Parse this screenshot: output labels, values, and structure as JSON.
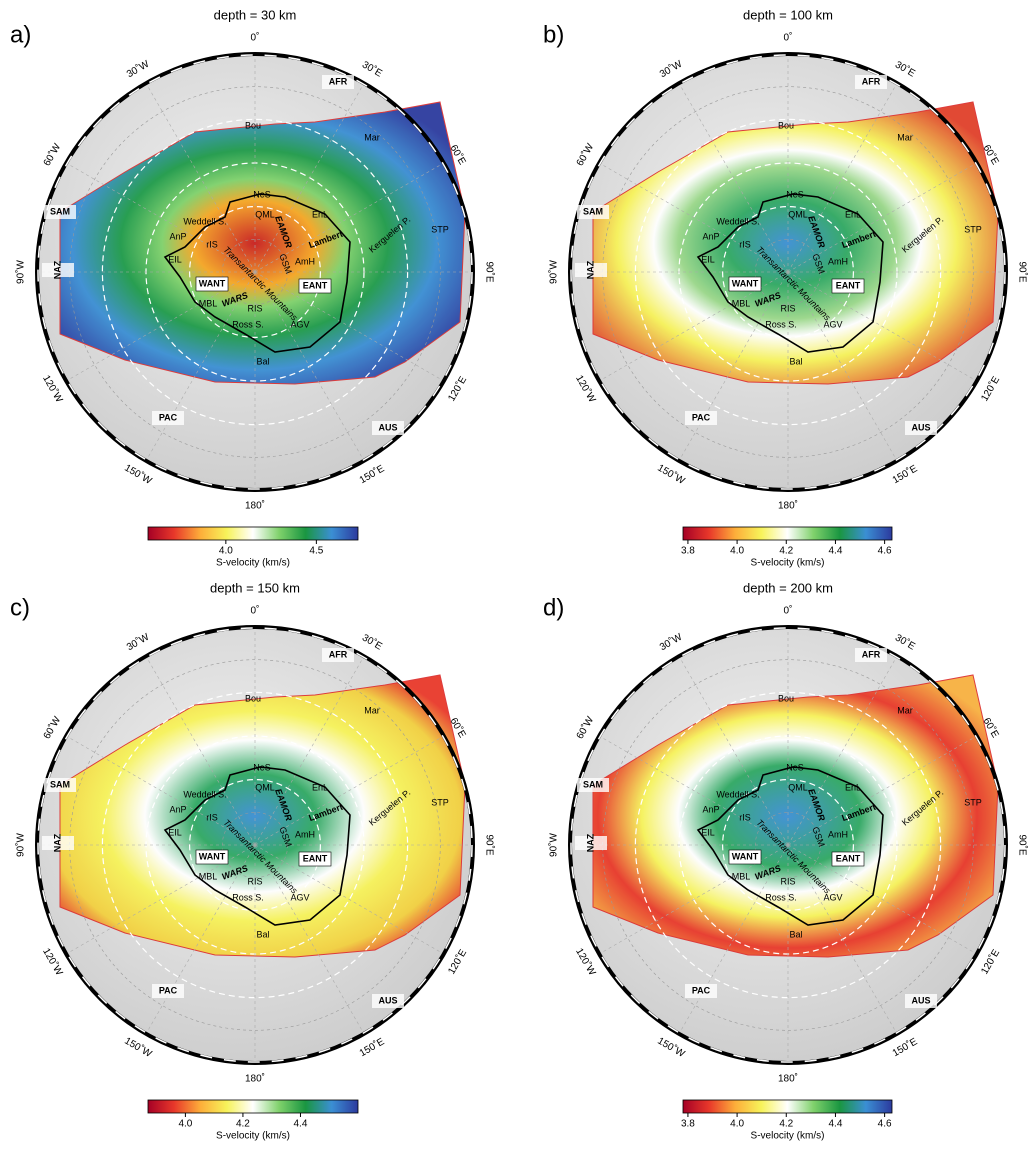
{
  "panels": [
    {
      "label": "a)",
      "title": "depth = 30 km",
      "colorbar": {
        "label": "S-velocity (km/s)",
        "lim": [
          3.57,
          4.73
        ],
        "ticks": [
          {
            "value": 4,
            "label": "4.0"
          },
          4.5
        ]
      }
    },
    {
      "label": "b)",
      "title": "depth = 100 km",
      "colorbar": {
        "label": "S-velocity (km/s)",
        "lim": [
          3.78,
          4.63
        ],
        "ticks": [
          3.8,
          {
            "value": 4,
            "label": "4.0"
          },
          4.2,
          4.4,
          4.6
        ]
      }
    },
    {
      "label": "c)",
      "title": "depth = 150 km",
      "colorbar": {
        "label": "S-velocity (km/s)",
        "lim": [
          3.87,
          4.6
        ],
        "ticks": [
          {
            "value": 4,
            "label": "4.0"
          },
          4.2,
          4.4
        ]
      }
    },
    {
      "label": "d)",
      "title": "depth = 200 km",
      "colorbar": {
        "label": "S-velocity (km/s)",
        "lim": [
          3.78,
          4.63
        ],
        "ticks": [
          3.8,
          {
            "value": 4,
            "label": "4.0"
          },
          4.2,
          4.4,
          4.6
        ]
      }
    }
  ],
  "colormap": [
    "#a50026",
    "#e8382a",
    "#fdae3a",
    "#f7f35a",
    "#ffffff",
    "#7fd16b",
    "#1a9641",
    "#3b8fd4",
    "#2c3a9e"
  ],
  "longitudes": [
    {
      "value": 0,
      "label": "0˚"
    },
    {
      "value": 30,
      "label": "30˚E"
    },
    {
      "value": 60,
      "label": "60˚E"
    },
    {
      "value": 90,
      "label": "90˚E"
    },
    {
      "value": 120,
      "label": "120˚E"
    },
    {
      "value": 150,
      "label": "150˚E"
    },
    {
      "value": 180,
      "label": "180˚"
    },
    {
      "value": -150,
      "label": "150˚W"
    },
    {
      "value": -120,
      "label": "120˚W"
    },
    {
      "value": -90,
      "label": "90˚W"
    },
    {
      "value": -60,
      "label": "60˚W"
    },
    {
      "value": -30,
      "label": "30˚W"
    }
  ],
  "region_labels": [
    "AFR",
    "SAM",
    "NAZ",
    "PAC",
    "AUS",
    "WANT",
    "EANT",
    "WARS",
    "EAMOR",
    "Transantarctic Mountains",
    "QML",
    "EnL",
    "NeS",
    "Lambert",
    "Weddell S.",
    "rIS",
    "AnP",
    "EIL",
    "MBL",
    "RIS",
    "Ross S.",
    "AGV",
    "AmH",
    "GSM",
    "Bal",
    "Mar",
    "Bou",
    "STP",
    "Kerguelen P."
  ]
}
